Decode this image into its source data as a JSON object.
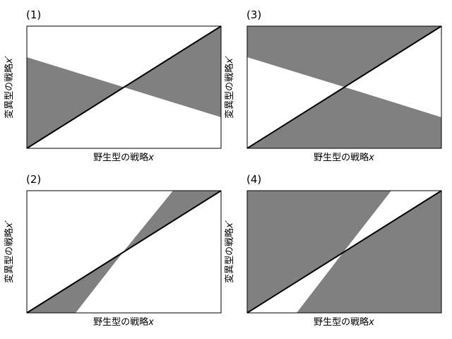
{
  "colors": {
    "shade": "#808080",
    "line": "#000000",
    "frame": "#000000",
    "background": "#ffffff"
  },
  "axes": {
    "x_label": "野生型の戦略",
    "x_var": "x",
    "y_label": "変異型の戦略",
    "y_var": "x′"
  },
  "panels": [
    {
      "label": "(1)",
      "show_ylabel": true
    },
    {
      "label": "(3)",
      "show_ylabel": true
    },
    {
      "label": "(2)",
      "show_ylabel": true
    },
    {
      "label": "(4)",
      "show_ylabel": true
    }
  ]
}
